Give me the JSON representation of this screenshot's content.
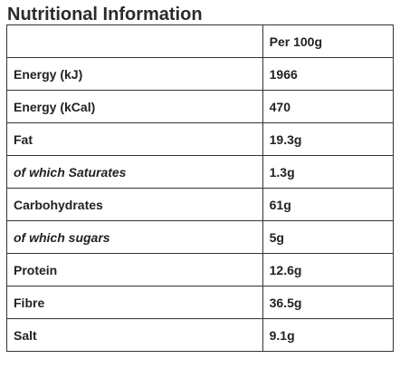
{
  "title": "Nutritional Information",
  "table": {
    "header": {
      "name": "",
      "value": "Per 100g"
    },
    "rows": [
      {
        "name": "Energy (kJ)",
        "value": "1966",
        "italic": false
      },
      {
        "name": "Energy (kCal)",
        "value": "470",
        "italic": false
      },
      {
        "name": "Fat",
        "value": "19.3g",
        "italic": false
      },
      {
        "name": "of which Saturates",
        "value": "1.3g",
        "italic": true
      },
      {
        "name": "Carbohydrates",
        "value": "61g",
        "italic": false
      },
      {
        "name": "of which sugars",
        "value": "5g",
        "italic": true
      },
      {
        "name": "Protein",
        "value": "12.6g",
        "italic": false
      },
      {
        "name": "Fibre",
        "value": "36.5g",
        "italic": false
      },
      {
        "name": "Salt",
        "value": "9.1g",
        "italic": false
      }
    ]
  }
}
